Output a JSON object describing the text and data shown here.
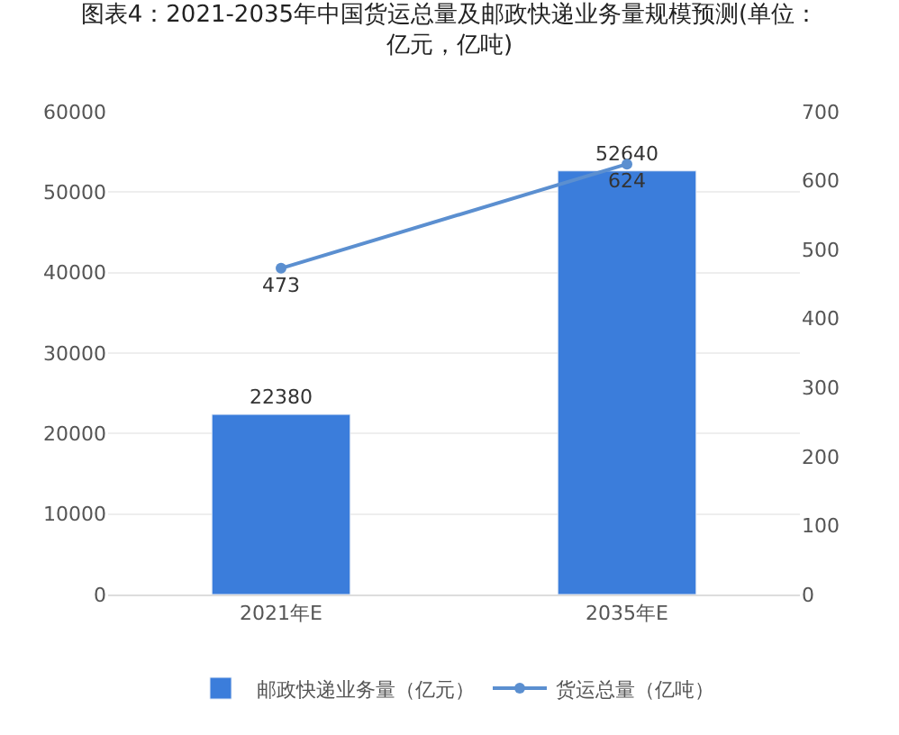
{
  "chart_data": {
    "type": "bar",
    "title": "图表4：2021-2035年中国货运总量及邮政快递业务量规模预测(单位：亿元，亿吨)",
    "categories": [
      "2021年E",
      "2035年E"
    ],
    "series": [
      {
        "name": "邮政快递业务量（亿元）",
        "color": "#3b7ddb",
        "values": [
          22380,
          52640
        ]
      },
      {
        "name": "货运总量（亿吨）",
        "type": "line",
        "axis": "y2",
        "color": "#5b8fd0",
        "values": [
          473,
          624
        ],
        "marker": "circle"
      }
    ],
    "ylim": [
      0,
      60000
    ],
    "yticks": [
      0,
      10000,
      20000,
      30000,
      40000,
      50000,
      60000
    ],
    "y2lim": [
      0,
      700
    ],
    "y2ticks": [
      0,
      100,
      200,
      300,
      400,
      500,
      600,
      700
    ],
    "grid": "y",
    "legend": "bottom",
    "data_labels": true
  }
}
